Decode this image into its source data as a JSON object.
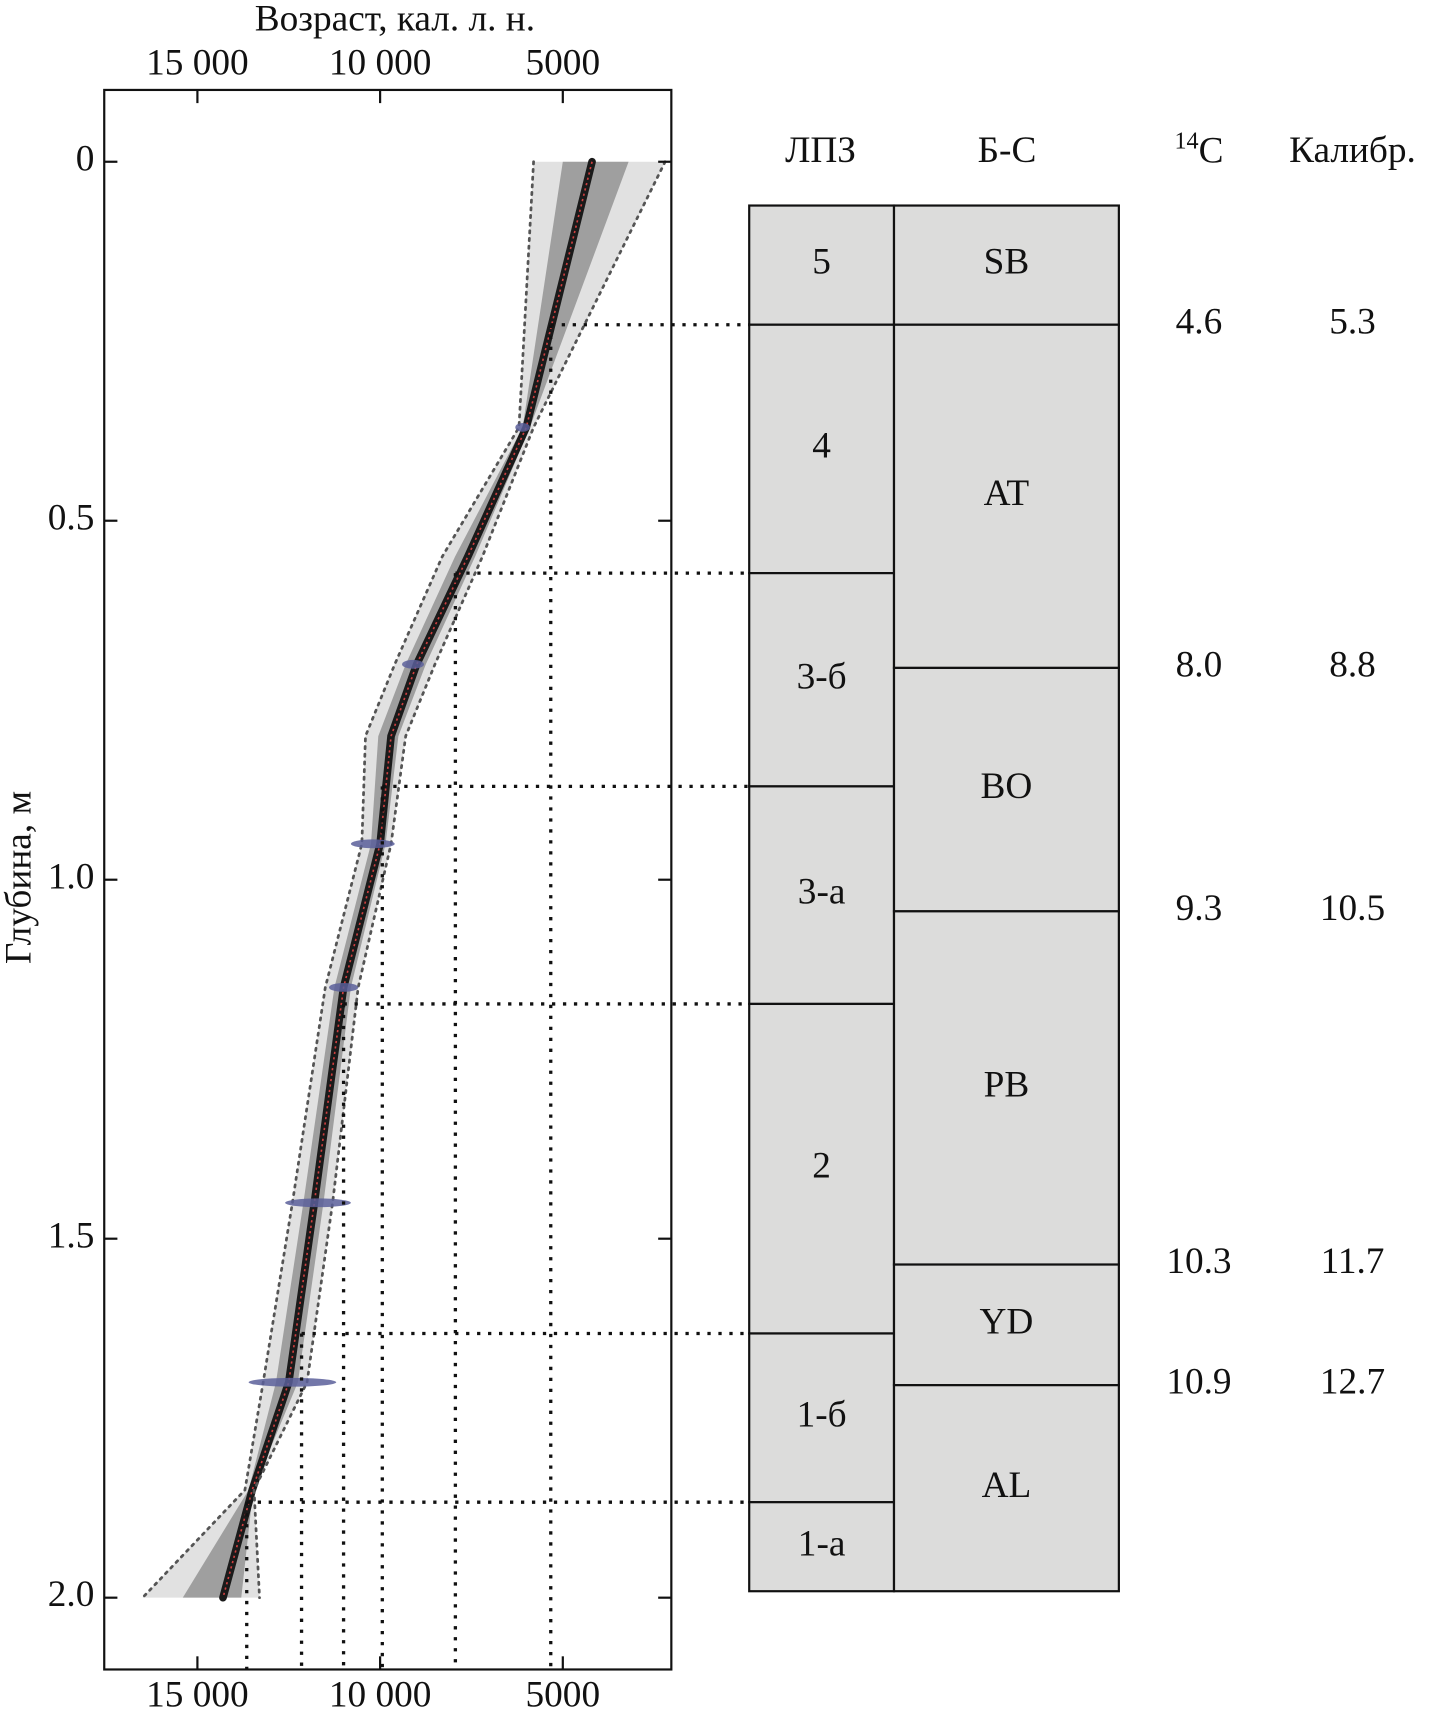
{
  "chart_data": {
    "type": "age-depth",
    "xlabel": "Возраст, кал. л. н.",
    "ylabel": "Глубина, м",
    "xlim": [
      17550,
      2030
    ],
    "xticks": [
      {
        "value": 15000,
        "label": "15 000"
      },
      {
        "value": 10000,
        "label": "10 000"
      },
      5000
    ],
    "ylim": [
      -0.1,
      2.1
    ],
    "yticks": [
      0,
      0.5,
      {
        "value": 1.0,
        "label": "1.0"
      },
      1.5,
      {
        "value": 2.0,
        "label": "2.0"
      }
    ],
    "x": [
      0,
      0.37,
      0.55,
      0.7,
      0.8,
      0.95,
      1.15,
      1.45,
      1.7,
      1.85,
      2.0
    ],
    "series": [
      {
        "color": "#d04040",
        "values": [
          4200,
          6000,
          7600,
          9000,
          9700,
          10000,
          11000,
          11800,
          12500,
          13500,
          14300
        ]
      },
      {
        "color": "#555555",
        "values": [
          2200,
          5800,
          7200,
          8500,
          9300,
          9700,
          10600,
          11300,
          12000,
          13450,
          13300
        ]
      },
      {
        "color": "#555555",
        "values": [
          5800,
          6200,
          8300,
          9600,
          10400,
          10500,
          11500,
          12400,
          13200,
          13700,
          16500
        ]
      }
    ],
    "dates": {
      "color": "#5a5f9a",
      "depths": [
        0.37,
        0.7,
        0.95,
        1.15,
        1.45,
        1.7
      ],
      "values": [
        6100,
        9100,
        10200,
        11000,
        11700,
        12400
      ],
      "errors": [
        200,
        300,
        600,
        400,
        900,
        1200
      ]
    },
    "boundaries": {
      "depths": [
        0.227,
        0.573,
        0.87,
        1.173,
        1.632,
        1.867
      ],
      "ages": [
        5330,
        7940,
        9940,
        11000,
        12150,
        13650
      ]
    },
    "lpz": {
      "header": "ЛПЗ",
      "labels": [
        "5",
        "4",
        "3-б",
        "3-а",
        "2",
        "1-б",
        "1-а"
      ],
      "edges": [
        0.061,
        0.227,
        0.573,
        0.87,
        1.173,
        1.632,
        1.867,
        1.991
      ]
    },
    "bs": {
      "header": "Б-С",
      "labels": [
        "SB",
        "AT",
        "BO",
        "PB",
        "YD",
        "AL"
      ],
      "edges": [
        0.061,
        0.227,
        0.705,
        1.044,
        1.536,
        1.704,
        1.991
      ]
    },
    "c14": {
      "sup": "14",
      "text": "C",
      "values": [
        "4.6",
        "8.0",
        "9.3",
        "10.3",
        "10.9"
      ]
    },
    "cal": {
      "header": "Калибр.",
      "values": [
        "5.3",
        "8.8",
        "10.5",
        "11.7",
        "12.7"
      ]
    },
    "zone_color": "#dcdcdb"
  }
}
